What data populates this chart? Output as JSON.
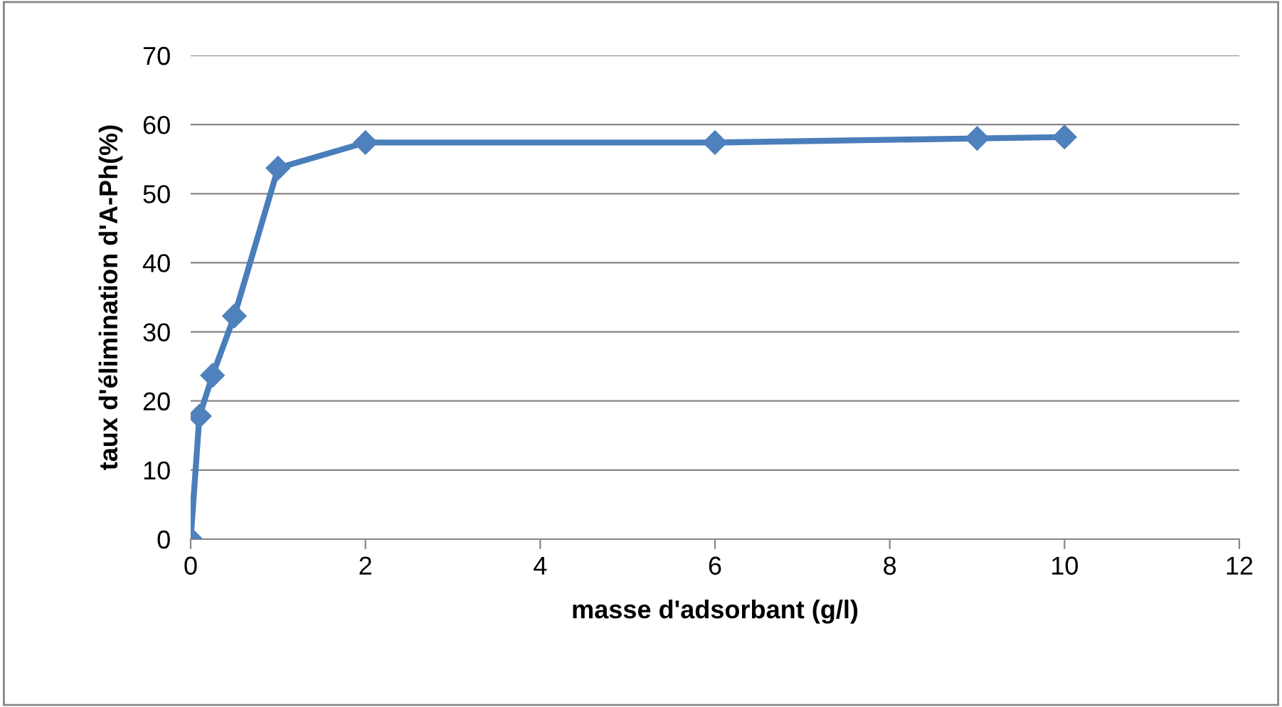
{
  "chart_data": {
    "type": "line",
    "xlabel": "masse d'adsorbant (g/l)",
    "ylabel": "taux d'élimination d'A-Ph(%)",
    "x": [
      0,
      0.1,
      0.25,
      0.5,
      1,
      2,
      6,
      9,
      10
    ],
    "series": [
      {
        "color": "#4a7ebb",
        "values": [
          0,
          17.8,
          23.7,
          32.3,
          53.7,
          57.4,
          57.4,
          58.0,
          58.2
        ]
      }
    ],
    "xlim": [
      0,
      12
    ],
    "xticks": [
      0,
      2,
      4,
      6,
      8,
      10,
      12
    ],
    "ylim": [
      0,
      70
    ],
    "yticks": [
      0,
      10,
      20,
      30,
      40,
      50,
      60,
      70
    ],
    "grid": "y",
    "marker": "diamond",
    "line_style": "solid"
  }
}
